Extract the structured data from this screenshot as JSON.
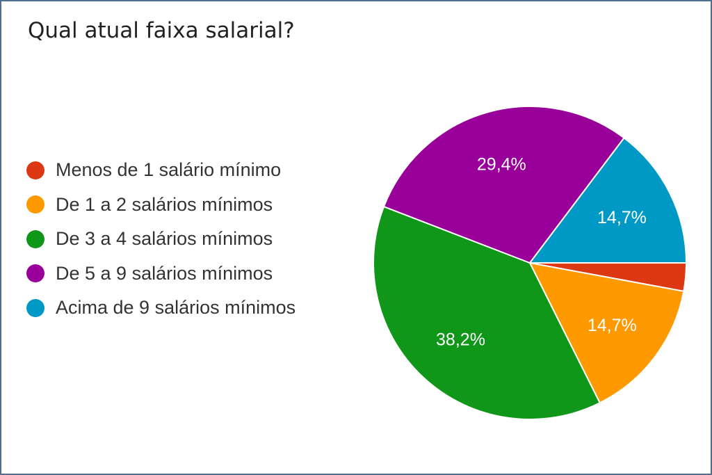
{
  "chart_data": {
    "type": "pie",
    "title": "Qual atual faixa salarial?",
    "legend_position": "left",
    "slices": [
      {
        "label": "Menos de 1 salário mínimo",
        "value": 2.9,
        "value_label": "",
        "color": "#dc3912"
      },
      {
        "label": "De 1 a 2 salários mínimos",
        "value": 14.7,
        "value_label": "14,7%",
        "color": "#ff9900"
      },
      {
        "label": "De 3 a 4 salários mínimos",
        "value": 38.2,
        "value_label": "38,2%",
        "color": "#109618"
      },
      {
        "label": "De 5 a 9 salários mínimos",
        "value": 29.4,
        "value_label": "29,4%",
        "color": "#990099"
      },
      {
        "label": "Acima de 9 salários mínimos",
        "value": 14.7,
        "value_label": "14,7%",
        "color": "#0099c6"
      }
    ]
  }
}
